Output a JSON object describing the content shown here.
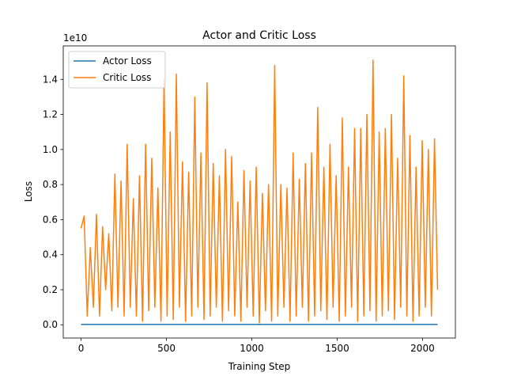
{
  "chart_data": {
    "type": "line",
    "title": "Actor and Critic Loss",
    "xlabel": "Training Step",
    "ylabel": "Loss",
    "y_offset_label": "1e10",
    "xlim": [
      -104.4,
      2192.4
    ],
    "xticks": [
      0,
      500,
      1000,
      1500,
      2000
    ],
    "ylim": [
      -0.0757,
      1.591
    ],
    "yticks": [
      {
        "value": 0,
        "label": "0.0"
      },
      0.2,
      0.4,
      0.6,
      0.8,
      {
        "value": 1,
        "label": "1.0"
      },
      1.2,
      1.4
    ],
    "legend": "upper left",
    "series": [
      {
        "name": "Actor Loss",
        "color": "#1f77b4",
        "x": [
          0,
          2088
        ],
        "values": [
          0.002,
          0.002
        ]
      },
      {
        "name": "Critic Loss",
        "color": "#ff7f0e",
        "x": [
          0,
          18,
          36,
          54,
          72,
          90,
          108,
          126,
          144,
          162,
          180,
          198,
          216,
          234,
          252,
          270,
          288,
          306,
          324,
          342,
          360,
          378,
          396,
          414,
          432,
          450,
          468,
          486,
          504,
          522,
          540,
          558,
          576,
          594,
          612,
          630,
          648,
          666,
          684,
          702,
          720,
          738,
          756,
          774,
          792,
          810,
          828,
          846,
          864,
          882,
          900,
          918,
          936,
          954,
          972,
          990,
          1008,
          1026,
          1044,
          1062,
          1080,
          1098,
          1116,
          1134,
          1152,
          1170,
          1188,
          1206,
          1224,
          1242,
          1260,
          1278,
          1296,
          1314,
          1332,
          1350,
          1368,
          1386,
          1404,
          1422,
          1440,
          1458,
          1476,
          1494,
          1512,
          1530,
          1548,
          1566,
          1584,
          1602,
          1620,
          1638,
          1656,
          1674,
          1692,
          1710,
          1728,
          1746,
          1764,
          1782,
          1800,
          1818,
          1836,
          1854,
          1872,
          1890,
          1908,
          1926,
          1944,
          1962,
          1980,
          1998,
          2016,
          2034,
          2052,
          2070,
          2088
        ],
        "values": [
          0.55,
          0.62,
          0.05,
          0.44,
          0.1,
          0.63,
          0.05,
          0.56,
          0.2,
          0.52,
          0.08,
          0.86,
          0.1,
          0.82,
          0.05,
          1.03,
          0.1,
          0.72,
          0.05,
          0.85,
          0.02,
          1.03,
          0.08,
          0.95,
          0.1,
          0.78,
          0.02,
          1.4,
          0.05,
          1.1,
          0.03,
          1.43,
          0.1,
          0.93,
          0.02,
          0.87,
          0.05,
          1.3,
          0.1,
          0.98,
          0.03,
          1.38,
          0.05,
          0.92,
          0.1,
          0.85,
          0.02,
          1.0,
          0.08,
          0.96,
          0.05,
          0.7,
          0.02,
          0.88,
          0.1,
          0.82,
          0.05,
          0.9,
          0.01,
          0.75,
          0.08,
          0.8,
          0.02,
          1.48,
          0.05,
          0.8,
          0.1,
          0.78,
          0.02,
          0.98,
          0.05,
          0.83,
          0.1,
          0.92,
          0.02,
          0.98,
          0.05,
          1.24,
          0.08,
          0.9,
          0.03,
          1.03,
          0.1,
          0.85,
          0.02,
          1.18,
          0.05,
          0.9,
          0.1,
          1.12,
          0.02,
          1.12,
          0.05,
          1.2,
          0.08,
          1.51,
          0.02,
          1.1,
          0.05,
          1.12,
          0.08,
          1.2,
          0.03,
          0.95,
          0.1,
          1.42,
          0.05,
          1.08,
          0.02,
          0.9,
          0.05,
          1.05,
          0.1,
          1.0,
          0.05,
          1.06,
          0.2
        ]
      }
    ]
  }
}
